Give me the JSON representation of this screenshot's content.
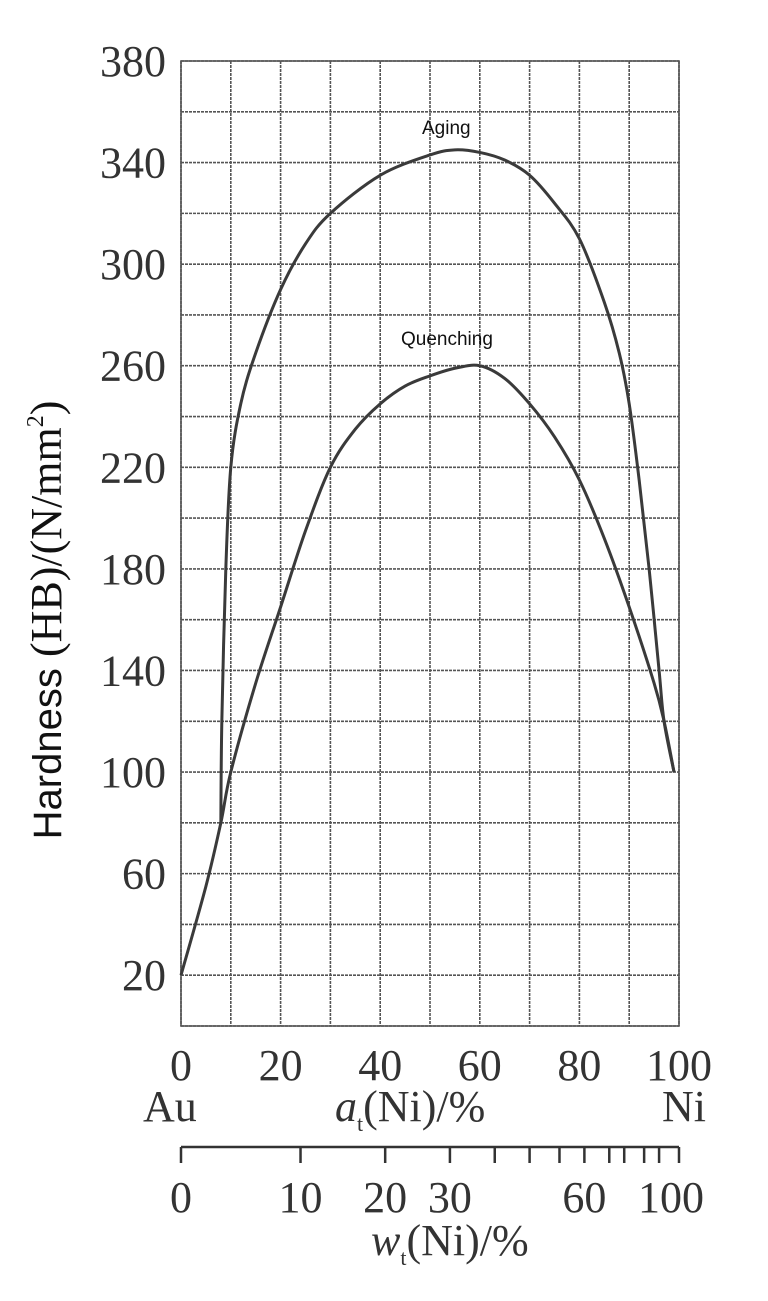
{
  "chart_data": {
    "type": "line",
    "title": "",
    "ylabel": "Hardness (HB)/(N/mm²)",
    "ylabel_main": "Hardness ",
    "ylabel_units": "(HB)/(N/mm",
    "ylabel_sup": "2",
    "ylabel_close": ")",
    "xlabel_primary": "a_t(Ni)/%",
    "xlabel_primary_var": "a",
    "xlabel_primary_sub": "t",
    "xlabel_primary_rest": "(Ni)/%",
    "xlabel_secondary": "w_t(Ni)/%",
    "xlabel_secondary_var": "w",
    "xlabel_secondary_sub": "t",
    "xlabel_secondary_rest": "(Ni)/%",
    "x_end_labels": {
      "left": "Au",
      "right": "Ni"
    },
    "xlim": [
      0,
      100
    ],
    "ylim": [
      0,
      380
    ],
    "grid": true,
    "y_ticks": [
      20,
      60,
      100,
      140,
      180,
      220,
      260,
      300,
      340,
      380
    ],
    "x_ticks": [
      0,
      20,
      40,
      60,
      80,
      100
    ],
    "secondary_x_ticks": {
      "labels": [
        "0",
        "10",
        "20",
        "30",
        "60",
        "100"
      ],
      "label_positions_at": [
        0,
        10,
        20,
        30,
        60,
        100
      ],
      "tick_positions_at": [
        0,
        24,
        41,
        54,
        63,
        70,
        76,
        81,
        86,
        89,
        93,
        96,
        100
      ]
    },
    "series": [
      {
        "name": "Aging",
        "x": [
          8,
          8.2,
          9,
          10,
          12,
          15,
          20,
          25,
          30,
          40,
          50,
          55,
          60,
          65,
          70,
          75,
          80,
          85,
          88,
          90,
          92,
          94,
          96,
          97
        ],
        "values": [
          80,
          120,
          180,
          220,
          245,
          265,
          290,
          308,
          320,
          335,
          343,
          345,
          344,
          341,
          335,
          324,
          310,
          285,
          265,
          245,
          215,
          180,
          140,
          120
        ]
      },
      {
        "name": "Quenching",
        "x": [
          0,
          5,
          8,
          10,
          15,
          20,
          25,
          30,
          35,
          40,
          45,
          50,
          55,
          60,
          65,
          70,
          75,
          80,
          85,
          90,
          95,
          97,
          99
        ],
        "values": [
          20,
          55,
          80,
          100,
          135,
          165,
          195,
          220,
          235,
          245,
          252,
          256,
          259,
          260,
          255,
          245,
          232,
          215,
          192,
          165,
          135,
          120,
          100
        ]
      }
    ]
  }
}
